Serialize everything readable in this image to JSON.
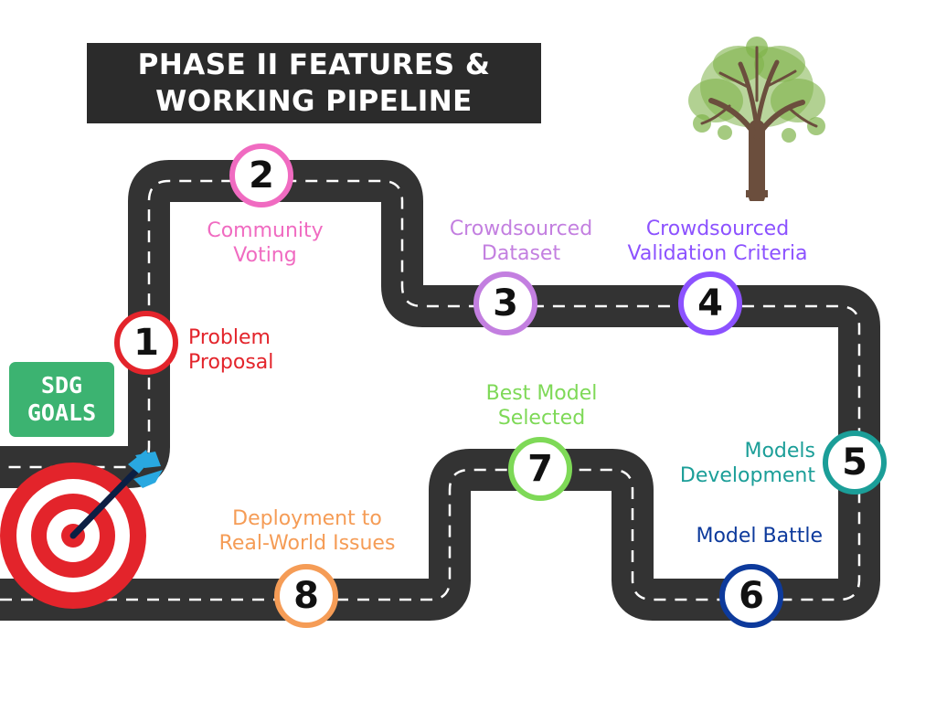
{
  "title": {
    "line1": "PHASE II FEATURES &",
    "line2": "WORKING PIPELINE"
  },
  "badge": {
    "line1": "SDG",
    "line2": "GOALS",
    "color": "#3cb371"
  },
  "road_color": "#333333",
  "steps": [
    {
      "number": "1",
      "label_lines": [
        "Problem",
        "Proposal"
      ],
      "color": "#e3242b"
    },
    {
      "number": "2",
      "label_lines": [
        "Community",
        "Voting"
      ],
      "color": "#f06bc1"
    },
    {
      "number": "3",
      "label_lines": [
        "Crowdsourced",
        "Dataset"
      ],
      "color": "#c37fe0"
    },
    {
      "number": "4",
      "label_lines": [
        "Crowdsourced",
        "Validation Criteria"
      ],
      "color": "#8c52ff"
    },
    {
      "number": "5",
      "label_lines": [
        "Models",
        "Development"
      ],
      "color": "#1b9e98"
    },
    {
      "number": "6",
      "label_lines": [
        "Model Battle"
      ],
      "color": "#0d3a9c"
    },
    {
      "number": "7",
      "label_lines": [
        "Best Model",
        "Selected"
      ],
      "color": "#7ed957"
    },
    {
      "number": "8",
      "label_lines": [
        "Deployment to",
        "Real-World Issues"
      ],
      "color": "#f59c56"
    }
  ],
  "icons": {
    "target": "target-icon",
    "arrow": "dart-arrow-icon",
    "tree": "tree-icon"
  },
  "target_colors": {
    "red": "#e3242b",
    "white": "#ffffff",
    "arrow_shaft": "#0b1f44",
    "fletching": "#29a8e0"
  }
}
